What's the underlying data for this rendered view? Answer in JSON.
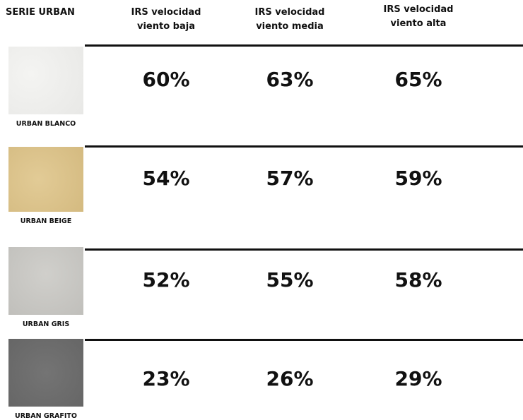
{
  "header": {
    "title": "SERIE URBAN",
    "columns": [
      "IRS velocidad viento baja",
      "IRS velocidad viento media",
      "IRS velocidad viento alta"
    ]
  },
  "rows": [
    {
      "name": "URBAN BLANCO",
      "values": [
        "60%",
        "63%",
        "65%"
      ]
    },
    {
      "name": "URBAN BEIGE",
      "values": [
        "54%",
        "57%",
        "59%"
      ]
    },
    {
      "name": "URBAN GRIS",
      "values": [
        "52%",
        "55%",
        "58%"
      ]
    },
    {
      "name": "URBAN GRAFITO",
      "values": [
        "23%",
        "26%",
        "29%"
      ]
    }
  ]
}
